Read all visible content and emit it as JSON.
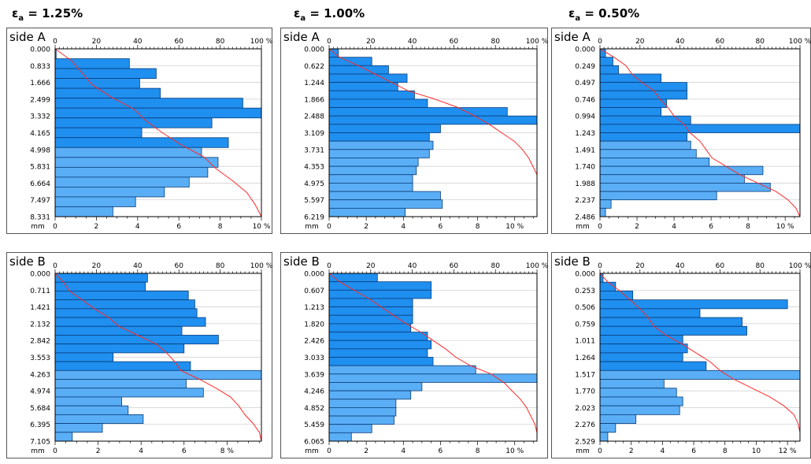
{
  "headers": [
    {
      "eps": "ε",
      "sub": "a",
      "value": " = 1.25%"
    },
    {
      "eps": "ε",
      "sub": "a",
      "value": " = 1.00%"
    },
    {
      "eps": "ε",
      "sub": "a",
      "value": " = 0.50%"
    }
  ],
  "colors": {
    "bar": "#1f8ff0",
    "bar_light": "#5aaef5",
    "bar_stroke": "#0a3d7a",
    "curve": "#ff2a2a",
    "grid": "#cccccc",
    "frame": "#555555"
  },
  "chart_data": [
    {
      "type": "bar",
      "orientation": "horizontal",
      "label": "side A",
      "y_unit": "mm",
      "y_ticks": [
        "0.000",
        "0.833",
        "1.666",
        "2.499",
        "3.332",
        "4.165",
        "4.998",
        "5.831",
        "6.664",
        "7.497",
        "8.331"
      ],
      "y_range": [
        0,
        8.331
      ],
      "x_ticks": [
        "0",
        "2",
        "4",
        "6",
        "8",
        "10 %"
      ],
      "x_range": [
        0,
        10
      ],
      "top_ticks": [
        "0",
        "20",
        "40",
        "60",
        "80",
        "100 %"
      ],
      "values": [
        0.05,
        3.6,
        4.9,
        4.1,
        5.1,
        9.1,
        10.0,
        7.6,
        4.2,
        8.4,
        7.1,
        7.9,
        7.4,
        6.5,
        5.3,
        3.9,
        2.8
      ],
      "cumulative": [
        [
          0,
          0
        ],
        [
          1,
          8
        ],
        [
          2,
          13
        ],
        [
          3,
          18
        ],
        [
          4,
          27
        ],
        [
          5,
          38
        ],
        [
          6,
          44
        ],
        [
          7,
          52
        ],
        [
          8,
          61
        ],
        [
          9,
          72
        ],
        [
          10,
          78
        ],
        [
          11,
          86
        ],
        [
          12,
          93
        ],
        [
          13,
          97
        ],
        [
          14,
          100
        ]
      ]
    },
    {
      "type": "bar",
      "orientation": "horizontal",
      "label": "side A",
      "y_unit": "mm",
      "y_ticks": [
        "0.000",
        "0.622",
        "1.244",
        "1.866",
        "2.488",
        "3.109",
        "3.731",
        "4.353",
        "4.975",
        "5.597",
        "6.219"
      ],
      "y_range": [
        0,
        6.219
      ],
      "x_ticks": [
        "0",
        "2",
        "4",
        "6",
        "8",
        "10 %"
      ],
      "x_range": [
        0,
        11.2
      ],
      "top_ticks": [
        "0",
        "20",
        "40",
        "60",
        "80",
        "100 %"
      ],
      "values": [
        0.5,
        2.3,
        3.2,
        4.2,
        3.7,
        4.6,
        5.3,
        9.6,
        11.2,
        6.0,
        5.4,
        5.6,
        5.4,
        4.8,
        4.7,
        4.5,
        4.5,
        6.0,
        6.1,
        4.1
      ],
      "cumulative": [
        [
          0,
          0
        ],
        [
          1,
          5
        ],
        [
          2,
          14
        ],
        [
          3,
          22
        ],
        [
          4,
          30
        ],
        [
          5,
          38
        ],
        [
          6,
          51
        ],
        [
          7,
          62
        ],
        [
          8,
          70
        ],
        [
          9,
          77
        ],
        [
          10,
          83
        ],
        [
          11,
          89
        ],
        [
          12,
          93
        ],
        [
          13,
          96
        ],
        [
          14,
          98
        ],
        [
          15,
          100
        ],
        [
          16,
          100
        ],
        [
          17,
          100
        ],
        [
          18,
          100
        ],
        [
          19,
          100
        ],
        [
          20,
          100
        ]
      ]
    },
    {
      "type": "bar",
      "orientation": "horizontal",
      "label": "side A",
      "y_unit": "mm",
      "y_ticks": [
        "0.000",
        "0.249",
        "0.497",
        "0.746",
        "0.994",
        "1.243",
        "1.491",
        "1.740",
        "1.988",
        "2.237",
        "2.486"
      ],
      "y_range": [
        0,
        2.486
      ],
      "x_ticks": [
        "0",
        "2",
        "4",
        "6",
        "8",
        "10 %"
      ],
      "x_range": [
        0,
        10.8
      ],
      "top_ticks": [
        "0",
        "20",
        "40",
        "60",
        "80",
        "100 %"
      ],
      "values": [
        0.3,
        0.7,
        1.0,
        3.3,
        4.7,
        4.7,
        3.6,
        3.3,
        4.9,
        10.8,
        4.7,
        4.9,
        5.2,
        5.9,
        8.8,
        7.8,
        9.2,
        6.3,
        0.6,
        0.3
      ],
      "cumulative": [
        [
          0,
          0
        ],
        [
          1,
          7
        ],
        [
          2,
          13
        ],
        [
          3,
          16
        ],
        [
          4,
          21
        ],
        [
          5,
          27
        ],
        [
          6,
          30
        ],
        [
          7,
          34
        ],
        [
          8,
          37
        ],
        [
          9,
          42
        ],
        [
          10,
          45
        ],
        [
          11,
          50
        ],
        [
          12,
          53
        ],
        [
          13,
          56
        ],
        [
          14,
          63
        ],
        [
          15,
          70
        ],
        [
          16,
          79
        ],
        [
          17,
          88
        ],
        [
          18,
          94
        ],
        [
          19,
          98
        ],
        [
          20,
          100
        ]
      ]
    },
    {
      "type": "bar",
      "orientation": "horizontal",
      "label": "side B",
      "y_unit": "mm",
      "y_ticks": [
        "0.000",
        "0.711",
        "1.421",
        "2.132",
        "2.842",
        "3.553",
        "4.263",
        "4.974",
        "5.684",
        "6.395",
        "7.105"
      ],
      "y_range": [
        0,
        7.105
      ],
      "x_ticks": [
        "0",
        "2",
        "4",
        "6",
        "8 %"
      ],
      "x_range": [
        0,
        9.6
      ],
      "top_ticks": [
        "0",
        "20",
        "40",
        "60",
        "80",
        "100 %"
      ],
      "values": [
        4.3,
        4.2,
        6.2,
        6.5,
        6.6,
        7.0,
        5.9,
        7.6,
        6.0,
        2.7,
        6.3,
        9.6,
        6.1,
        6.9,
        3.1,
        3.4,
        4.1,
        2.2,
        0.8
      ],
      "cumulative": [
        [
          0,
          0
        ],
        [
          1,
          4
        ],
        [
          2,
          7
        ],
        [
          3,
          13
        ],
        [
          4,
          19
        ],
        [
          5,
          26
        ],
        [
          6,
          31
        ],
        [
          7,
          40
        ],
        [
          8,
          49
        ],
        [
          9,
          54
        ],
        [
          10,
          58
        ],
        [
          11,
          61
        ],
        [
          12,
          70
        ],
        [
          13,
          78
        ],
        [
          14,
          85
        ],
        [
          15,
          89
        ],
        [
          16,
          92
        ],
        [
          17,
          96
        ],
        [
          18,
          99
        ],
        [
          19,
          100
        ]
      ]
    },
    {
      "type": "bar",
      "orientation": "horizontal",
      "label": "side B",
      "y_unit": "mm",
      "y_ticks": [
        "0.000",
        "0.607",
        "1.213",
        "1.820",
        "2.426",
        "3.033",
        "3.639",
        "4.246",
        "4.852",
        "5.459",
        "6.065"
      ],
      "y_range": [
        0,
        6.065
      ],
      "x_ticks": [
        "0",
        "2",
        "4",
        "6",
        "8",
        "10 %"
      ],
      "x_range": [
        0,
        11.2
      ],
      "top_ticks": [
        "0",
        "20",
        "40",
        "60",
        "80",
        "100 %"
      ],
      "values": [
        2.6,
        5.5,
        5.5,
        4.5,
        4.5,
        4.5,
        4.4,
        5.3,
        5.5,
        5.3,
        5.6,
        7.9,
        11.2,
        5.0,
        4.4,
        3.6,
        3.6,
        3.5,
        2.3,
        1.2
      ],
      "cumulative": [
        [
          0,
          0
        ],
        [
          1,
          5
        ],
        [
          2,
          12
        ],
        [
          3,
          19
        ],
        [
          4,
          25
        ],
        [
          5,
          31
        ],
        [
          6,
          37
        ],
        [
          7,
          44
        ],
        [
          8,
          50
        ],
        [
          9,
          56
        ],
        [
          10,
          61
        ],
        [
          11,
          68
        ],
        [
          12,
          78
        ],
        [
          13,
          84
        ],
        [
          14,
          88
        ],
        [
          15,
          92
        ],
        [
          16,
          95
        ],
        [
          17,
          97
        ],
        [
          18,
          99
        ],
        [
          19,
          100
        ],
        [
          20,
          100
        ]
      ]
    },
    {
      "type": "bar",
      "orientation": "horizontal",
      "label": "side B",
      "y_unit": "mm",
      "y_ticks": [
        "0.000",
        "0.253",
        "0.506",
        "0.759",
        "1.011",
        "1.264",
        "1.517",
        "1.770",
        "2.023",
        "2.276",
        "2.529"
      ],
      "y_range": [
        0,
        2.529
      ],
      "x_ticks": [
        "0",
        "2",
        "4",
        "6",
        "8",
        "10",
        "12 %"
      ],
      "x_range": [
        0,
        12.8
      ],
      "top_ticks": [
        "0",
        "20",
        "40",
        "60",
        "80",
        "100 %"
      ],
      "values": [
        0.2,
        1.0,
        2.1,
        12.0,
        6.4,
        9.1,
        9.4,
        5.3,
        5.6,
        5.3,
        6.8,
        12.8,
        4.1,
        4.9,
        5.3,
        5.1,
        2.3,
        1.0,
        0.5
      ],
      "cumulative": [
        [
          0,
          0
        ],
        [
          1,
          4
        ],
        [
          2,
          10
        ],
        [
          3,
          15
        ],
        [
          4,
          20
        ],
        [
          5,
          24
        ],
        [
          6,
          27
        ],
        [
          7,
          33
        ],
        [
          8,
          41
        ],
        [
          9,
          48
        ],
        [
          10,
          55
        ],
        [
          11,
          60
        ],
        [
          12,
          67
        ],
        [
          13,
          76
        ],
        [
          14,
          85
        ],
        [
          15,
          92
        ],
        [
          16,
          97
        ],
        [
          17,
          99
        ],
        [
          18,
          100
        ],
        [
          19,
          100
        ]
      ]
    }
  ]
}
